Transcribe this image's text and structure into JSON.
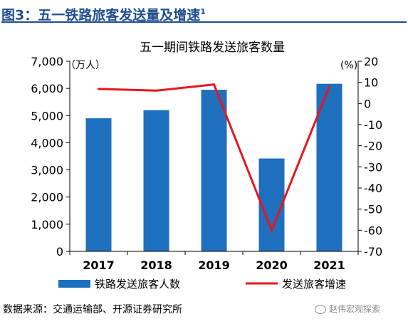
{
  "figure": {
    "title": "图3：五一铁路旅客发送量及增速",
    "title_sup": "1",
    "source": "数据来源：交通运输部、开源证券研究所",
    "watermark": "赵伟宏观探索"
  },
  "chart_data": {
    "type": "bar",
    "title": "五一期间铁路发送旅客数量",
    "categories": [
      "2017",
      "2018",
      "2019",
      "2020",
      "2021"
    ],
    "left_axis": {
      "label": "（万人）",
      "range": [
        0,
        7000
      ],
      "ticks": [
        "0",
        "1,000",
        "2,000",
        "3,000",
        "4,000",
        "5,000",
        "6,000",
        "7,000"
      ]
    },
    "right_axis": {
      "label": "(%)",
      "range": [
        -70,
        20
      ],
      "ticks": [
        "-70",
        "-60",
        "-50",
        "-40",
        "-30",
        "-20",
        "-10",
        "0",
        "10",
        "20"
      ]
    },
    "series": [
      {
        "name": "铁路发送旅客人数",
        "type": "bar",
        "axis": "left",
        "color": "#1f6fbf",
        "values": [
          4900,
          5200,
          5950,
          3420,
          6170
        ]
      },
      {
        "name": "发送旅客增速",
        "type": "line",
        "axis": "right",
        "color": "#e8161b",
        "values": [
          6.9,
          6.1,
          9.0,
          -60.0,
          8.0
        ]
      }
    ],
    "grid": false,
    "legend": "bottom"
  }
}
